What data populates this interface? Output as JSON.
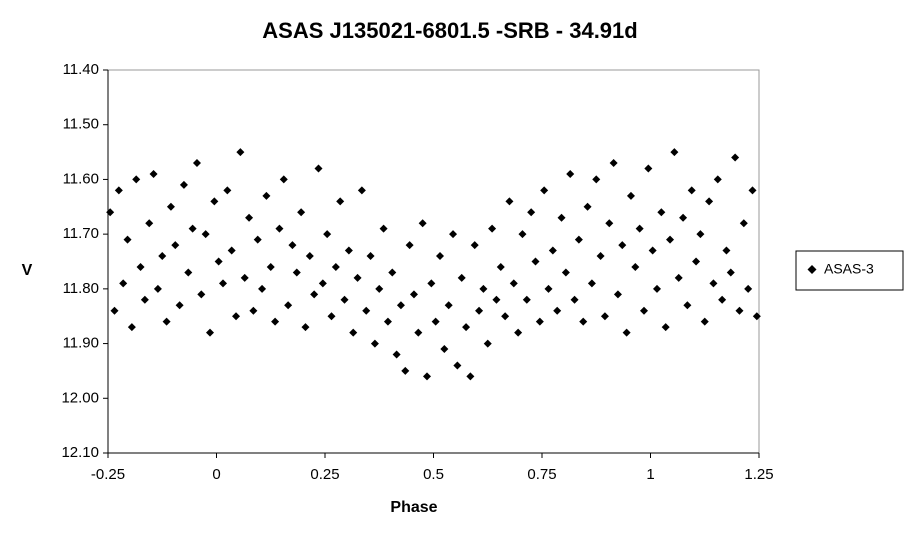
{
  "chart_data": {
    "type": "scatter",
    "title": "ASAS J135021-6801.5 -SRB - 34.91d",
    "x_label": "Phase",
    "y_label": "V",
    "y_inverted": true,
    "legend": "right",
    "xlim": [
      -0.25,
      1.25
    ],
    "xticks": [
      -0.25,
      0,
      0.25,
      0.5,
      0.75,
      1,
      1.25
    ],
    "ylim": [
      11.4,
      12.1
    ],
    "yticks": [
      {
        "value": 11.4,
        "label": "11.40"
      },
      {
        "value": 11.5,
        "label": "11.50"
      },
      {
        "value": 11.6,
        "label": "11.60"
      },
      {
        "value": 11.7,
        "label": "11.70"
      },
      {
        "value": 11.8,
        "label": "11.80"
      },
      {
        "value": 11.9,
        "label": "11.90"
      },
      {
        "value": 12.0,
        "label": "12.00"
      },
      {
        "value": 12.1,
        "label": "12.10"
      }
    ],
    "series": [
      {
        "name": "ASAS-3",
        "color": "#000000",
        "x": [
          -0.245,
          -0.235,
          -0.225,
          -0.215,
          -0.205,
          -0.195,
          -0.185,
          -0.175,
          -0.165,
          -0.155,
          -0.145,
          -0.135,
          -0.125,
          -0.115,
          -0.105,
          -0.095,
          -0.085,
          -0.075,
          -0.065,
          -0.055,
          -0.045,
          -0.035,
          -0.025,
          -0.015,
          -0.005,
          0.005,
          0.015,
          0.025,
          0.035,
          0.045,
          0.055,
          0.065,
          0.075,
          0.085,
          0.095,
          0.105,
          0.115,
          0.125,
          0.135,
          0.145,
          0.155,
          0.165,
          0.175,
          0.185,
          0.195,
          0.205,
          0.215,
          0.225,
          0.235,
          0.245,
          0.255,
          0.265,
          0.275,
          0.285,
          0.295,
          0.305,
          0.315,
          0.325,
          0.335,
          0.345,
          0.355,
          0.365,
          0.375,
          0.385,
          0.395,
          0.405,
          0.415,
          0.425,
          0.435,
          0.445,
          0.455,
          0.465,
          0.475,
          0.485,
          0.495,
          0.505,
          0.515,
          0.525,
          0.535,
          0.545,
          0.555,
          0.565,
          0.575,
          0.585,
          0.595,
          0.605,
          0.615,
          0.625,
          0.635,
          0.645,
          0.655,
          0.665,
          0.675,
          0.685,
          0.695,
          0.705,
          0.715,
          0.725,
          0.735,
          0.745,
          0.755,
          0.765,
          0.775,
          0.785,
          0.795,
          0.805,
          0.815,
          0.825,
          0.835,
          0.845,
          0.855,
          0.865,
          0.875,
          0.885,
          0.895,
          0.905,
          0.915,
          0.925,
          0.935,
          0.945,
          0.955,
          0.965,
          0.975,
          0.985,
          0.995,
          1.005,
          1.015,
          1.025,
          1.035,
          1.045,
          1.055,
          1.065,
          1.075,
          1.085,
          1.095,
          1.105,
          1.115,
          1.125,
          1.135,
          1.145,
          1.155,
          1.165,
          1.175,
          1.185,
          1.195,
          1.205,
          1.215,
          1.225,
          1.235,
          1.245
        ],
        "values": [
          11.66,
          11.84,
          11.62,
          11.79,
          11.71,
          11.87,
          11.6,
          11.76,
          11.82,
          11.68,
          11.59,
          11.8,
          11.74,
          11.86,
          11.65,
          11.72,
          11.83,
          11.61,
          11.77,
          11.69,
          11.57,
          11.81,
          11.7,
          11.88,
          11.64,
          11.75,
          11.79,
          11.62,
          11.73,
          11.85,
          11.55,
          11.78,
          11.67,
          11.84,
          11.71,
          11.8,
          11.63,
          11.76,
          11.86,
          11.69,
          11.6,
          11.83,
          11.72,
          11.77,
          11.66,
          11.87,
          11.74,
          11.81,
          11.58,
          11.79,
          11.7,
          11.85,
          11.76,
          11.64,
          11.82,
          11.73,
          11.88,
          11.78,
          11.62,
          11.84,
          11.74,
          11.9,
          11.8,
          11.69,
          11.86,
          11.77,
          11.92,
          11.83,
          11.95,
          11.72,
          11.81,
          11.88,
          11.68,
          11.96,
          11.79,
          11.86,
          11.74,
          11.91,
          11.83,
          11.7,
          11.94,
          11.78,
          11.87,
          11.96,
          11.72,
          11.84,
          11.8,
          11.9,
          11.69,
          11.82,
          11.76,
          11.85,
          11.64,
          11.79,
          11.88,
          11.7,
          11.82,
          11.66,
          11.75,
          11.86,
          11.62,
          11.8,
          11.73,
          11.84,
          11.67,
          11.77,
          11.59,
          11.82,
          11.71,
          11.86,
          11.65,
          11.79,
          11.6,
          11.74,
          11.85,
          11.68,
          11.57,
          11.81,
          11.72,
          11.88,
          11.63,
          11.76,
          11.69,
          11.84,
          11.58,
          11.73,
          11.8,
          11.66,
          11.87,
          11.71,
          11.55,
          11.78,
          11.67,
          11.83,
          11.62,
          11.75,
          11.7,
          11.86,
          11.64,
          11.79,
          11.6,
          11.82,
          11.73,
          11.77,
          11.56,
          11.84,
          11.68,
          11.8,
          11.62,
          11.85
        ]
      }
    ]
  }
}
